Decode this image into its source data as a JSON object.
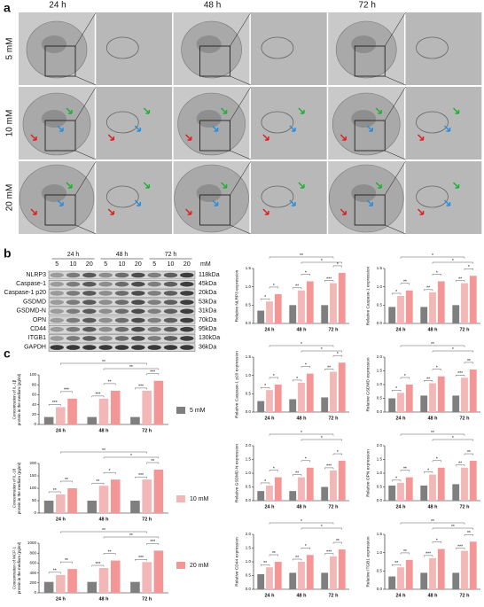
{
  "panel_labels": [
    "a",
    "b",
    "c"
  ],
  "em": {
    "times": [
      "24 h",
      "48 h",
      "72 h"
    ],
    "doses": [
      "5 mM",
      "10 mM",
      "20 mM"
    ]
  },
  "blot": {
    "times": [
      "24 h",
      "48 h",
      "72 h"
    ],
    "concentrations": [
      5,
      10,
      20
    ],
    "unit": "mM",
    "proteins": [
      {
        "name": "NLRP3",
        "size": "118kDa"
      },
      {
        "name": "Caspase-1",
        "size": "45kDa"
      },
      {
        "name": "Caspase-1 p20",
        "size": "20kDa"
      },
      {
        "name": "GSDMD",
        "size": "53kDa"
      },
      {
        "name": "GSDMD-N",
        "size": "31kDa"
      },
      {
        "name": "OPN",
        "size": "70kDa"
      },
      {
        "name": "CD44",
        "size": "95kDa"
      },
      {
        "name": "ITGB1",
        "size": "130kDa"
      },
      {
        "name": "GAPDH",
        "size": "36kDa"
      }
    ]
  },
  "legend": [
    {
      "name": "5 mM",
      "color": "#7f7f7f"
    },
    {
      "name": "10 mM",
      "color": "#f2b8b8"
    },
    {
      "name": "20 mM",
      "color": "#f59696"
    }
  ],
  "chart_data": [
    {
      "type": "bar",
      "y_label": [
        "Relative NLRP3 expression"
      ],
      "categories": [
        "24 h",
        "48 h",
        "72 h"
      ],
      "series": [
        {
          "values": [
            0.35,
            0.5,
            0.5
          ]
        },
        {
          "values": [
            0.6,
            0.9,
            1.1
          ]
        },
        {
          "values": [
            0.8,
            1.15,
            1.38
          ]
        }
      ],
      "ylim": [
        0,
        1.5
      ],
      "yticks": [
        {
          "value": 0,
          "label": "0.0"
        },
        0.5,
        {
          "value": 1,
          "label": "1.0"
        },
        1.5
      ],
      "significance": {
        "within": [
          [
            "*",
            "*"
          ],
          [
            "**",
            "*"
          ],
          [
            "***",
            "*"
          ]
        ],
        "across": [
          "**",
          "*"
        ]
      }
    },
    {
      "type": "bar",
      "y_label": [
        "Relative Caspase-1 expression"
      ],
      "categories": [
        "24 h",
        "48 h",
        "72 h"
      ],
      "series": [
        {
          "values": [
            0.45,
            0.45,
            0.5
          ]
        },
        {
          "values": [
            0.75,
            0.85,
            1.1
          ]
        },
        {
          "values": [
            0.9,
            1.15,
            1.3
          ]
        }
      ],
      "ylim": [
        0,
        1.5
      ],
      "yticks": [
        {
          "value": 0,
          "label": "0.0"
        },
        0.5,
        {
          "value": 1,
          "label": "1.0"
        },
        1.5
      ],
      "significance": {
        "within": [
          [
            "*",
            "**"
          ],
          [
            "**",
            "*"
          ],
          [
            "**",
            "*"
          ]
        ],
        "across": [
          "*",
          "*"
        ]
      }
    },
    {
      "type": "bar",
      "y_label": [
        "Relative Caspase-1 p20 expression"
      ],
      "categories": [
        "24 h",
        "48 h",
        "72 h"
      ],
      "series": [
        {
          "values": [
            0.3,
            0.35,
            0.4
          ]
        },
        {
          "values": [
            0.6,
            0.8,
            1.1
          ]
        },
        {
          "values": [
            0.75,
            1.05,
            1.35
          ]
        }
      ],
      "ylim": [
        0,
        1.5
      ],
      "yticks": [
        {
          "value": 0,
          "label": "0.0"
        },
        0.5,
        {
          "value": 1,
          "label": "1.0"
        },
        1.5
      ],
      "significance": {
        "within": [
          [
            "*",
            "*"
          ],
          [
            "*",
            "*"
          ],
          [
            "**",
            "*"
          ]
        ],
        "across": [
          "*",
          "*"
        ]
      }
    },
    {
      "type": "bar",
      "y_label": [
        "Relative GSDMD expression"
      ],
      "categories": [
        "24 h",
        "48 h",
        "72 h"
      ],
      "series": [
        {
          "values": [
            0.5,
            0.6,
            0.6
          ]
        },
        {
          "values": [
            0.7,
            1.05,
            1.25
          ]
        },
        {
          "values": [
            1.0,
            1.3,
            1.55
          ]
        }
      ],
      "ylim": [
        0,
        2
      ],
      "yticks": [
        {
          "value": 0,
          "label": "0.0"
        },
        0.5,
        {
          "value": 1,
          "label": "1.0"
        },
        1.5,
        {
          "value": 2,
          "label": "2.0"
        }
      ],
      "significance": {
        "within": [
          [
            "*",
            "*"
          ],
          [
            "**",
            "*"
          ],
          [
            "***",
            "**"
          ]
        ],
        "across": [
          "**",
          "*"
        ]
      }
    },
    {
      "type": "bar",
      "y_label": [
        "Relative GSDMD-N expression"
      ],
      "categories": [
        "24 h",
        "48 h",
        "72 h"
      ],
      "series": [
        {
          "values": [
            0.35,
            0.35,
            0.5
          ]
        },
        {
          "values": [
            0.55,
            0.85,
            1.1
          ]
        },
        {
          "values": [
            0.85,
            1.2,
            1.45
          ]
        }
      ],
      "ylim": [
        0,
        2
      ],
      "yticks": [
        {
          "value": 0,
          "label": "0.0"
        },
        0.5,
        {
          "value": 1,
          "label": "1.0"
        },
        1.5,
        {
          "value": 2,
          "label": "2.0"
        }
      ],
      "significance": {
        "within": [
          [
            "*",
            "*"
          ],
          [
            "**",
            "*"
          ],
          [
            "***",
            "*"
          ]
        ],
        "across": [
          "*",
          "*"
        ]
      }
    },
    {
      "type": "bar",
      "y_label": [
        "Relative OPN expression"
      ],
      "categories": [
        "24 h",
        "48 h",
        "72 h"
      ],
      "series": [
        {
          "values": [
            0.55,
            0.55,
            0.6
          ]
        },
        {
          "values": [
            0.65,
            0.95,
            1.2
          ]
        },
        {
          "values": [
            0.85,
            1.2,
            1.45
          ]
        }
      ],
      "ylim": [
        0,
        2
      ],
      "yticks": [
        {
          "value": 0,
          "label": "0.0"
        },
        0.5,
        {
          "value": 1,
          "label": "1.0"
        },
        1.5,
        {
          "value": 2,
          "label": "2.0"
        }
      ],
      "significance": {
        "within": [
          [
            "*",
            "**"
          ],
          [
            "*",
            "*"
          ],
          [
            "**",
            "**"
          ]
        ],
        "across": [
          "**",
          "*"
        ]
      }
    },
    {
      "type": "bar",
      "y_label": [
        "Relative CD44 expression"
      ],
      "categories": [
        "24 h",
        "48 h",
        "72 h"
      ],
      "series": [
        {
          "values": [
            0.55,
            0.6,
            0.6
          ]
        },
        {
          "values": [
            0.8,
            1.0,
            1.2
          ]
        },
        {
          "values": [
            1.0,
            1.25,
            1.45
          ]
        }
      ],
      "ylim": [
        0,
        2
      ],
      "yticks": [
        {
          "value": 0,
          "label": "0.0"
        },
        0.5,
        {
          "value": 1,
          "label": "1.0"
        },
        1.5,
        {
          "value": 2,
          "label": "2.0"
        }
      ],
      "significance": {
        "within": [
          [
            "**",
            "**"
          ],
          [
            "**",
            "*"
          ],
          [
            "***",
            "**"
          ]
        ],
        "across": [
          "*",
          "*"
        ]
      }
    },
    {
      "type": "bar",
      "y_label": [
        "Relative ITGB1 expression"
      ],
      "categories": [
        "24 h",
        "48 h",
        "72 h"
      ],
      "series": [
        {
          "values": [
            0.35,
            0.45,
            0.45
          ]
        },
        {
          "values": [
            0.6,
            0.85,
            1.05
          ]
        },
        {
          "values": [
            0.8,
            1.1,
            1.3
          ]
        }
      ],
      "ylim": [
        0,
        1.5
      ],
      "yticks": [
        {
          "value": 0,
          "label": "0.0"
        },
        0.5,
        {
          "value": 1,
          "label": "1.0"
        },
        1.5
      ],
      "significance": {
        "within": [
          [
            "**",
            "**"
          ],
          [
            "***",
            "*"
          ],
          [
            "***",
            "**"
          ]
        ],
        "across": [
          "**",
          "**"
        ]
      }
    },
    {
      "type": "bar",
      "y_label": [
        "Concentration of IL-1β",
        "protein in the medium (pg/ml)"
      ],
      "categories": [
        "24 h",
        "48 h",
        "72 h"
      ],
      "series": [
        {
          "values": [
            15,
            15,
            15
          ]
        },
        {
          "values": [
            35,
            52,
            68
          ]
        },
        {
          "values": [
            52,
            68,
            88
          ]
        }
      ],
      "ylim": [
        0,
        100
      ],
      "yticks": [
        0,
        20,
        40,
        60,
        80,
        100
      ],
      "significance": {
        "within": [
          [
            "***",
            "***"
          ],
          [
            "***",
            "**"
          ],
          [
            "***",
            "***"
          ]
        ],
        "across": [
          "**",
          "**"
        ]
      }
    },
    {
      "type": "bar",
      "y_label": [
        "Concentration of IL-18",
        "protein in the medium (pg/ml)"
      ],
      "categories": [
        "24 h",
        "48 h",
        "72 h"
      ],
      "series": [
        {
          "values": [
            50,
            50,
            50
          ]
        },
        {
          "values": [
            75,
            110,
            135
          ]
        },
        {
          "values": [
            100,
            135,
            175
          ]
        }
      ],
      "ylim": [
        0,
        200
      ],
      "yticks": [
        0,
        50,
        100,
        150,
        200
      ],
      "significance": {
        "within": [
          [
            "**",
            "**"
          ],
          [
            "**",
            "*"
          ],
          [
            "***",
            "**"
          ]
        ],
        "across": [
          "**",
          "*"
        ]
      }
    },
    {
      "type": "bar",
      "y_label": [
        "Concentration of MCP-1",
        "protein in the medium (pg/ml)"
      ],
      "categories": [
        "24 h",
        "48 h",
        "72 h"
      ],
      "series": [
        {
          "values": [
            220,
            220,
            220
          ]
        },
        {
          "values": [
            360,
            500,
            620
          ]
        },
        {
          "values": [
            480,
            650,
            850
          ]
        }
      ],
      "ylim": [
        0,
        1000
      ],
      "yticks": [
        0,
        200,
        400,
        600,
        800,
        1000
      ],
      "significance": {
        "within": [
          [
            "**",
            "**"
          ],
          [
            "***",
            "**"
          ],
          [
            "***",
            "***"
          ]
        ],
        "across": [
          "**",
          "**"
        ]
      }
    }
  ]
}
